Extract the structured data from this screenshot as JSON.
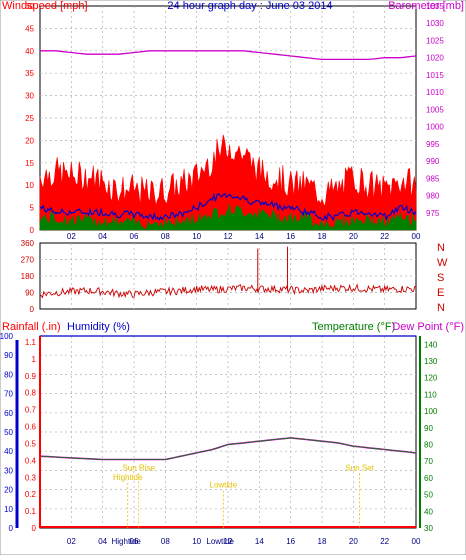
{
  "colors": {
    "wind": "#ff0000",
    "gust_fill": "#ff0000",
    "wind_avg": "#0000cc",
    "wind_low": "#008000",
    "barometer": "#cc00cc",
    "direction": "#cc0000",
    "rain": "#ff0000",
    "humidity": "#0000cc",
    "temperature": "#008000",
    "dewpoint": "#cc00cc",
    "annotation": "#e6c200",
    "title": "#0000cc"
  },
  "chart_data": [
    {
      "id": "wind-baro",
      "type": "line",
      "title": "24 hour graph day : June 03 2014",
      "left_label": "Windspeed [mph]",
      "right_label": "Barometer [mb]",
      "x_ticks": [
        "02",
        "04",
        "06",
        "08",
        "10",
        "12",
        "14",
        "16",
        "18",
        "20",
        "22",
        "00"
      ],
      "x_range_hours": [
        0,
        24
      ],
      "ylim_left": [
        0,
        50
      ],
      "yticks_left": [
        "0",
        "5",
        "10",
        "15",
        "20",
        "25",
        "30",
        "35",
        "40",
        "45",
        "50"
      ],
      "ylim_right": [
        970,
        1035
      ],
      "yticks_right": [
        "975",
        "980",
        "985",
        "990",
        "995",
        "1000",
        "1005",
        "1010",
        "1015",
        "1020",
        "1025",
        "1030",
        "1035"
      ],
      "series": [
        {
          "name": "Wind gust",
          "x": [
            0,
            1,
            2,
            3,
            4,
            5,
            6,
            7,
            8,
            9,
            10,
            11,
            12,
            13,
            14,
            15,
            16,
            17,
            18,
            19,
            20,
            21,
            22,
            23,
            24
          ],
          "values": [
            12,
            13,
            12,
            12,
            11,
            9,
            9,
            8,
            9,
            10,
            12,
            16,
            19,
            17,
            13,
            12,
            10,
            10,
            8,
            9,
            12,
            10,
            9,
            11,
            10
          ]
        },
        {
          "name": "Average",
          "x": [
            0,
            1,
            2,
            3,
            4,
            5,
            6,
            7,
            8,
            9,
            10,
            11,
            12,
            13,
            14,
            15,
            16,
            17,
            18,
            19,
            20,
            21,
            22,
            23,
            24
          ],
          "values": [
            5,
            4,
            4,
            4,
            4,
            3.5,
            3.5,
            3,
            3,
            3.5,
            5,
            7,
            8,
            7,
            6,
            5.5,
            5,
            4,
            3,
            3,
            4,
            4,
            3,
            5,
            4
          ]
        },
        {
          "name": "Wind low",
          "x": [
            0,
            1,
            2,
            3,
            4,
            5,
            6,
            7,
            8,
            9,
            10,
            11,
            12,
            13,
            14,
            15,
            16,
            17,
            18,
            19,
            20,
            21,
            22,
            23,
            24
          ],
          "values": [
            2,
            2,
            1.5,
            1.5,
            1.5,
            1,
            1,
            1,
            1,
            1,
            2,
            3,
            4,
            3.5,
            3,
            2.5,
            2,
            2,
            1,
            1,
            1.5,
            1.5,
            1,
            2,
            1.5
          ]
        },
        {
          "name": "Barometer",
          "x": [
            0,
            1,
            2,
            3,
            4,
            5,
            6,
            7,
            8,
            9,
            10,
            11,
            12,
            13,
            14,
            15,
            16,
            17,
            18,
            19,
            20,
            21,
            22,
            23,
            24
          ],
          "values": [
            1022,
            1022,
            1021.5,
            1021,
            1021,
            1021,
            1021.5,
            1022,
            1022,
            1022,
            1022,
            1022,
            1022,
            1022,
            1021.5,
            1021,
            1020.5,
            1020,
            1019.5,
            1019.5,
            1019.5,
            1019.5,
            1020,
            1020,
            1020.5
          ]
        }
      ]
    },
    {
      "id": "direction",
      "type": "line",
      "ylim": [
        0,
        360
      ],
      "yticks": [
        "0",
        "90",
        "180",
        "270",
        "360"
      ],
      "compass": [
        "N",
        "W",
        "S",
        "E",
        "N"
      ],
      "series": [
        {
          "name": "Wind direction",
          "x": [
            0,
            1,
            2,
            3,
            4,
            5,
            6,
            7,
            8,
            9,
            10,
            11,
            12,
            13,
            14,
            15,
            16,
            17,
            18,
            19,
            20,
            21,
            22,
            23,
            24
          ],
          "values": [
            80,
            90,
            95,
            100,
            95,
            85,
            80,
            90,
            95,
            100,
            110,
            105,
            110,
            115,
            110,
            110,
            105,
            100,
            110,
            115,
            115,
            110,
            105,
            110,
            110
          ]
        }
      ]
    },
    {
      "id": "rain-hum-temp",
      "type": "line",
      "labels": {
        "rain": "Rainfall (.in)",
        "humidity": "Humidity (%)",
        "temperature": "Temperature (°F)",
        "dewpoint": "Dew Point (°F)"
      },
      "yticks_humidity": [
        "0",
        "10",
        "20",
        "30",
        "40",
        "50",
        "60",
        "70",
        "80",
        "90",
        "100"
      ],
      "yticks_rain": [
        "0",
        "0.1",
        "0.2",
        "0.3",
        "0.4",
        "0.5",
        "0.6",
        "0.7",
        "0.8",
        "0.9",
        "1",
        "1.1"
      ],
      "yticks_temp": [
        "30",
        "40",
        "50",
        "60",
        "70",
        "80",
        "90",
        "100",
        "110",
        "120",
        "130",
        "140"
      ],
      "ylim_humidity": [
        0,
        100
      ],
      "ylim_temp": [
        30,
        145
      ],
      "series": [
        {
          "name": "Temperature",
          "x": [
            0,
            2,
            4,
            6,
            8,
            9,
            10,
            11,
            12,
            13,
            14,
            15,
            16,
            17,
            18,
            19,
            20,
            21,
            22,
            23,
            24
          ],
          "values": [
            73,
            72,
            71,
            71,
            71,
            73,
            75,
            77,
            80,
            81,
            82,
            83,
            84,
            83,
            82,
            81,
            79,
            78,
            77,
            76,
            75
          ]
        },
        {
          "name": "Rainfall",
          "x": [
            0,
            24
          ],
          "values": [
            0,
            0
          ]
        },
        {
          "name": "Humidity",
          "x": [
            0,
            24
          ],
          "values": [
            100,
            100
          ]
        }
      ],
      "annotations": [
        {
          "text": "Sun Rise",
          "hour": 6.3,
          "level": 30
        },
        {
          "text": "Sun Set",
          "hour": 20.4,
          "level": 30
        },
        {
          "text": "Hightide",
          "hour": 5.6,
          "level": 25
        },
        {
          "text": "Lowtide",
          "hour": 11.7,
          "level": 21
        }
      ],
      "bottom_labels": [
        {
          "text": "Hightide",
          "hour": 5.5
        },
        {
          "text": "Lowtide",
          "hour": 11.5
        }
      ]
    }
  ]
}
